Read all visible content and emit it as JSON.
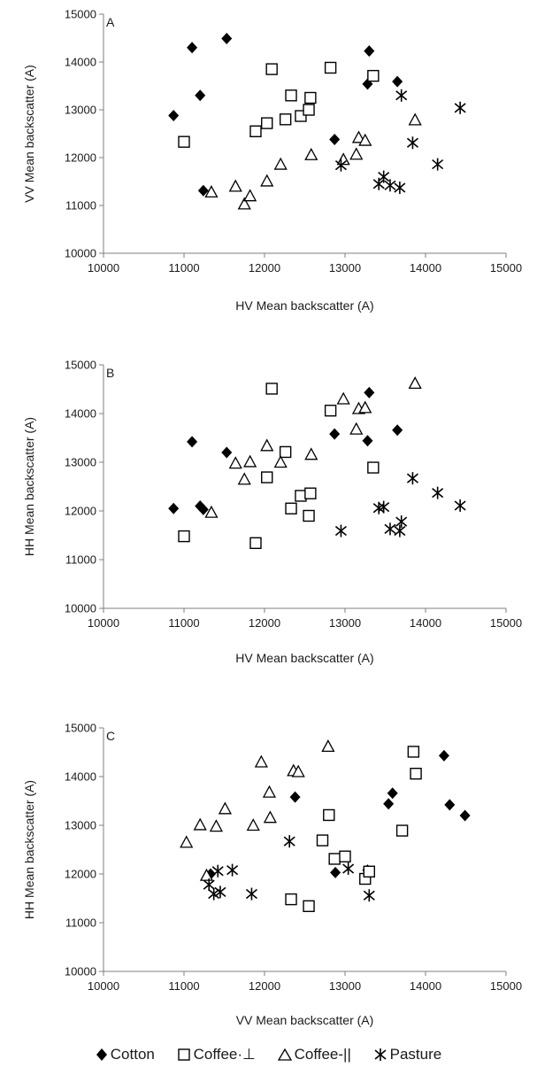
{
  "chart_data": [
    {
      "type": "scatter",
      "panel_label": "A",
      "xlabel": "HV Mean backscatter (A)",
      "ylabel": "VV Mean backscatter (A)",
      "xlim": [
        10000,
        15000
      ],
      "ylim": [
        10000,
        15000
      ],
      "xticks": [
        "10000",
        "11000",
        "12000",
        "13000",
        "14000",
        "15000"
      ],
      "yticks": [
        "10000",
        "11000",
        "12000",
        "13000",
        "14000",
        "15000"
      ],
      "series": [
        {
          "name": "Cotton",
          "x": [
            10870,
            11100,
            11200,
            11240,
            11530,
            12870,
            13280,
            13300,
            13650
          ],
          "y": [
            12880,
            14300,
            13300,
            11310,
            14490,
            12380,
            13540,
            14230,
            13590
          ]
        },
        {
          "name": "Coffee·⊥",
          "x": [
            11000,
            11890,
            12030,
            12090,
            12260,
            12330,
            12450,
            12550,
            12570,
            12820,
            13350
          ],
          "y": [
            12330,
            12550,
            12720,
            13850,
            12800,
            13300,
            12870,
            13000,
            13250,
            13880,
            13710
          ]
        },
        {
          "name": "Coffee-||",
          "x": [
            11340,
            11640,
            11750,
            11820,
            12030,
            12200,
            12580,
            12980,
            13140,
            13170,
            13250,
            13870
          ],
          "y": [
            11280,
            11400,
            11030,
            11200,
            11510,
            11860,
            12060,
            11960,
            12070,
            12420,
            12360,
            12790
          ]
        },
        {
          "name": "Pasture",
          "x": [
            12950,
            13420,
            13480,
            13560,
            13680,
            13700,
            13840,
            14150,
            14430
          ],
          "y": [
            11840,
            11450,
            11600,
            11420,
            11370,
            13300,
            12310,
            11860,
            13040
          ]
        }
      ]
    },
    {
      "type": "scatter",
      "panel_label": "B",
      "xlabel": "HV Mean backscatter (A)",
      "ylabel": "HH Mean backscatter (A)",
      "xlim": [
        10000,
        15000
      ],
      "ylim": [
        10000,
        15000
      ],
      "xticks": [
        "10000",
        "11000",
        "12000",
        "13000",
        "14000",
        "15000"
      ],
      "yticks": [
        "10000",
        "11000",
        "12000",
        "13000",
        "14000",
        "15000"
      ],
      "series": [
        {
          "name": "Cotton",
          "x": [
            10870,
            11100,
            11200,
            11240,
            11530,
            12870,
            13280,
            13300,
            13650
          ],
          "y": [
            12050,
            13420,
            12100,
            12030,
            13200,
            13580,
            13440,
            14430,
            13660
          ]
        },
        {
          "name": "Coffee·⊥",
          "x": [
            11000,
            11890,
            12030,
            12090,
            12260,
            12330,
            12450,
            12550,
            12570,
            12820,
            13350
          ],
          "y": [
            11480,
            11340,
            12690,
            14510,
            13210,
            12050,
            12310,
            11900,
            12360,
            14060,
            12890
          ]
        },
        {
          "name": "Coffee-||",
          "x": [
            11340,
            11640,
            11750,
            11820,
            12030,
            12200,
            12580,
            12980,
            13140,
            13170,
            13250,
            13870
          ],
          "y": [
            11970,
            12980,
            12650,
            13010,
            13340,
            13000,
            13160,
            14300,
            13680,
            14100,
            14120,
            14620
          ]
        },
        {
          "name": "Pasture",
          "x": [
            12950,
            13420,
            13480,
            13560,
            13680,
            13700,
            13840,
            14150,
            14430
          ],
          "y": [
            11590,
            12060,
            12080,
            11630,
            11590,
            11780,
            12670,
            12370,
            12110
          ]
        }
      ]
    },
    {
      "type": "scatter",
      "panel_label": "C",
      "xlabel": "VV Mean backscatter (A)",
      "ylabel": "HH Mean backscatter (A)",
      "xlim": [
        10000,
        15000
      ],
      "ylim": [
        10000,
        15000
      ],
      "xticks": [
        "10000",
        "11000",
        "12000",
        "13000",
        "14000",
        "15000"
      ],
      "yticks": [
        "10000",
        "11000",
        "12000",
        "13000",
        "14000",
        "15000"
      ],
      "series": [
        {
          "name": "Cotton",
          "x": [
            11330,
            12380,
            12880,
            13280,
            13540,
            13590,
            14230,
            14300,
            14490
          ],
          "y": [
            12000,
            13580,
            12030,
            12080,
            13440,
            13660,
            14430,
            13420,
            13200
          ]
        },
        {
          "name": "Coffee·⊥",
          "x": [
            12330,
            12550,
            12720,
            12800,
            12870,
            13000,
            13250,
            13300,
            13710,
            13850,
            13880
          ],
          "y": [
            11480,
            11340,
            12690,
            13210,
            12310,
            12360,
            11900,
            12050,
            12890,
            14510,
            14060
          ]
        },
        {
          "name": "Coffee-||",
          "x": [
            11030,
            11200,
            11280,
            11400,
            11510,
            11860,
            11960,
            12060,
            12070,
            12360,
            12420,
            12790
          ],
          "y": [
            12650,
            13010,
            11970,
            12980,
            13340,
            13000,
            14300,
            13680,
            13160,
            14120,
            14100,
            14620
          ]
        },
        {
          "name": "Pasture",
          "x": [
            11310,
            11370,
            11420,
            11450,
            11600,
            11840,
            12310,
            13040,
            13300
          ],
          "y": [
            11780,
            11590,
            12060,
            11630,
            12080,
            11590,
            12670,
            12110,
            11560
          ]
        }
      ]
    }
  ],
  "legend": {
    "items": [
      {
        "label": "Cotton",
        "marker": "diamond-filled-icon"
      },
      {
        "label": "Coffee·⊥",
        "marker": "square-open-icon"
      },
      {
        "label": "Coffee-||",
        "marker": "triangle-open-icon"
      },
      {
        "label": "Pasture",
        "marker": "asterisk-icon"
      }
    ]
  },
  "colors": {
    "marker": "#000000",
    "axis": "#7f7f7f",
    "text": "#1a1a1a"
  }
}
